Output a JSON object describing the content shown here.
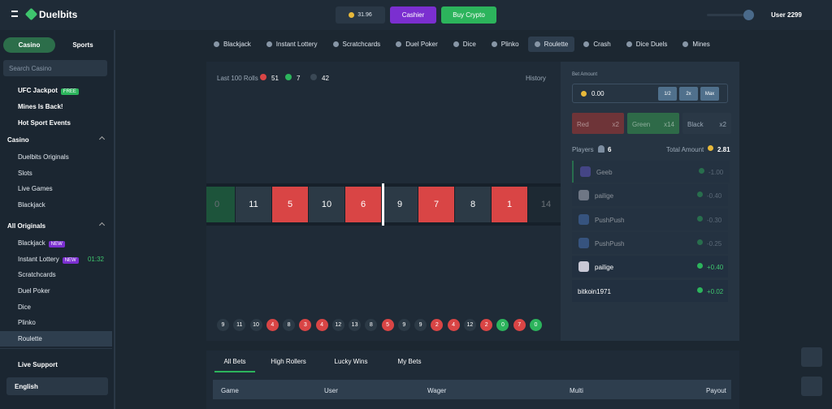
{
  "header": {
    "logo": "Duelbits",
    "balance": "31.96",
    "cashier": "Cashier",
    "buy_crypto": "Buy Crypto",
    "user": "User 2299"
  },
  "sidebar": {
    "tabs": [
      "Casino",
      "Sports"
    ],
    "search_placeholder": "Search Casino",
    "promos": [
      {
        "label": "UFC Jackpot",
        "badge": "FREE"
      },
      {
        "label": "Mines Is Back!"
      },
      {
        "label": "Hot Sport Events"
      }
    ],
    "sections": [
      {
        "title": "Casino",
        "items": [
          {
            "label": "Duelbits Originals"
          },
          {
            "label": "Slots"
          },
          {
            "label": "Live Games"
          },
          {
            "label": "Blackjack"
          }
        ]
      },
      {
        "title": "All Originals",
        "items": [
          {
            "label": "Blackjack",
            "badge": "NEW"
          },
          {
            "label": "Instant Lottery",
            "badge": "NEW",
            "timer": "01:32"
          },
          {
            "label": "Scratchcards"
          },
          {
            "label": "Duel Poker"
          },
          {
            "label": "Dice"
          },
          {
            "label": "Plinko"
          },
          {
            "label": "Roulette",
            "active": true
          }
        ]
      }
    ],
    "support": "Live Support",
    "language": "English"
  },
  "nav": {
    "items": [
      "Blackjack",
      "Instant Lottery",
      "Scratchcards",
      "Duel Poker",
      "Dice",
      "Plinko",
      "Roulette",
      "Crash",
      "Dice Duels",
      "Mines"
    ],
    "active": 6
  },
  "game": {
    "last_rolls_label": "Last 100 Rolls",
    "counts": [
      {
        "color": "red",
        "count": 51
      },
      {
        "color": "green",
        "count": 7
      },
      {
        "color": "dark",
        "count": 42
      }
    ],
    "history": "History",
    "wheel": [
      {
        "number": 0,
        "color": "green"
      },
      {
        "number": 11,
        "color": "dark"
      },
      {
        "number": 5,
        "color": "red"
      },
      {
        "number": 10,
        "color": "dark"
      },
      {
        "number": 6,
        "color": "red"
      },
      {
        "number": 9,
        "color": "dark"
      },
      {
        "number": 7,
        "color": "red"
      },
      {
        "number": 8,
        "color": "dark"
      },
      {
        "number": 1,
        "color": "red"
      },
      {
        "number": 14,
        "color": "dark"
      }
    ],
    "recent": [
      {
        "number": 9,
        "color": "dark"
      },
      {
        "number": 11,
        "color": "dark"
      },
      {
        "number": 10,
        "color": "dark"
      },
      {
        "number": 4,
        "color": "red"
      },
      {
        "number": 8,
        "color": "dark"
      },
      {
        "number": 3,
        "color": "red"
      },
      {
        "number": 4,
        "color": "red"
      },
      {
        "number": 12,
        "color": "dark"
      },
      {
        "number": 13,
        "color": "dark"
      },
      {
        "number": 8,
        "color": "dark"
      },
      {
        "number": 5,
        "color": "red"
      },
      {
        "number": 9,
        "color": "dark"
      },
      {
        "number": 9,
        "color": "dark"
      },
      {
        "number": 2,
        "color": "red"
      },
      {
        "number": 4,
        "color": "red"
      },
      {
        "number": 12,
        "color": "dark"
      },
      {
        "number": 2,
        "color": "red"
      },
      {
        "number": 0,
        "color": "green"
      },
      {
        "number": 7,
        "color": "red"
      },
      {
        "number": 0,
        "color": "green"
      }
    ]
  },
  "bet": {
    "label": "Bet Amount",
    "amount": "0.00",
    "buttons": [
      "1/2",
      "2x",
      "Max"
    ],
    "options": [
      {
        "label": "Red",
        "multiplier": "x2",
        "color": "red"
      },
      {
        "label": "Green",
        "multiplier": "x14",
        "color": "green"
      },
      {
        "label": "Black",
        "multiplier": "x2",
        "color": "dark"
      }
    ]
  },
  "players": {
    "label": "Players",
    "count": 6,
    "total_label": "Total Amount",
    "total": "2.81",
    "rows": [
      {
        "name": "Geeb",
        "amount": "-1.00",
        "faded": true
      },
      {
        "name": "pailige",
        "amount": "-0.40",
        "faded": true
      },
      {
        "name": "PushPush",
        "amount": "-0.30",
        "faded": true
      },
      {
        "name": "PushPush",
        "amount": "-0.25",
        "faded": true
      },
      {
        "name": "pailige",
        "amount": "+0.40",
        "faded": false
      },
      {
        "name": "bitkoin1971",
        "amount": "+0.02",
        "faded": false
      }
    ]
  },
  "bets": {
    "tabs": [
      "All Bets",
      "High Rollers",
      "Lucky Wins",
      "My Bets"
    ],
    "active": 0,
    "columns": [
      "Game",
      "User",
      "Wager",
      "Multi",
      "Payout"
    ]
  }
}
